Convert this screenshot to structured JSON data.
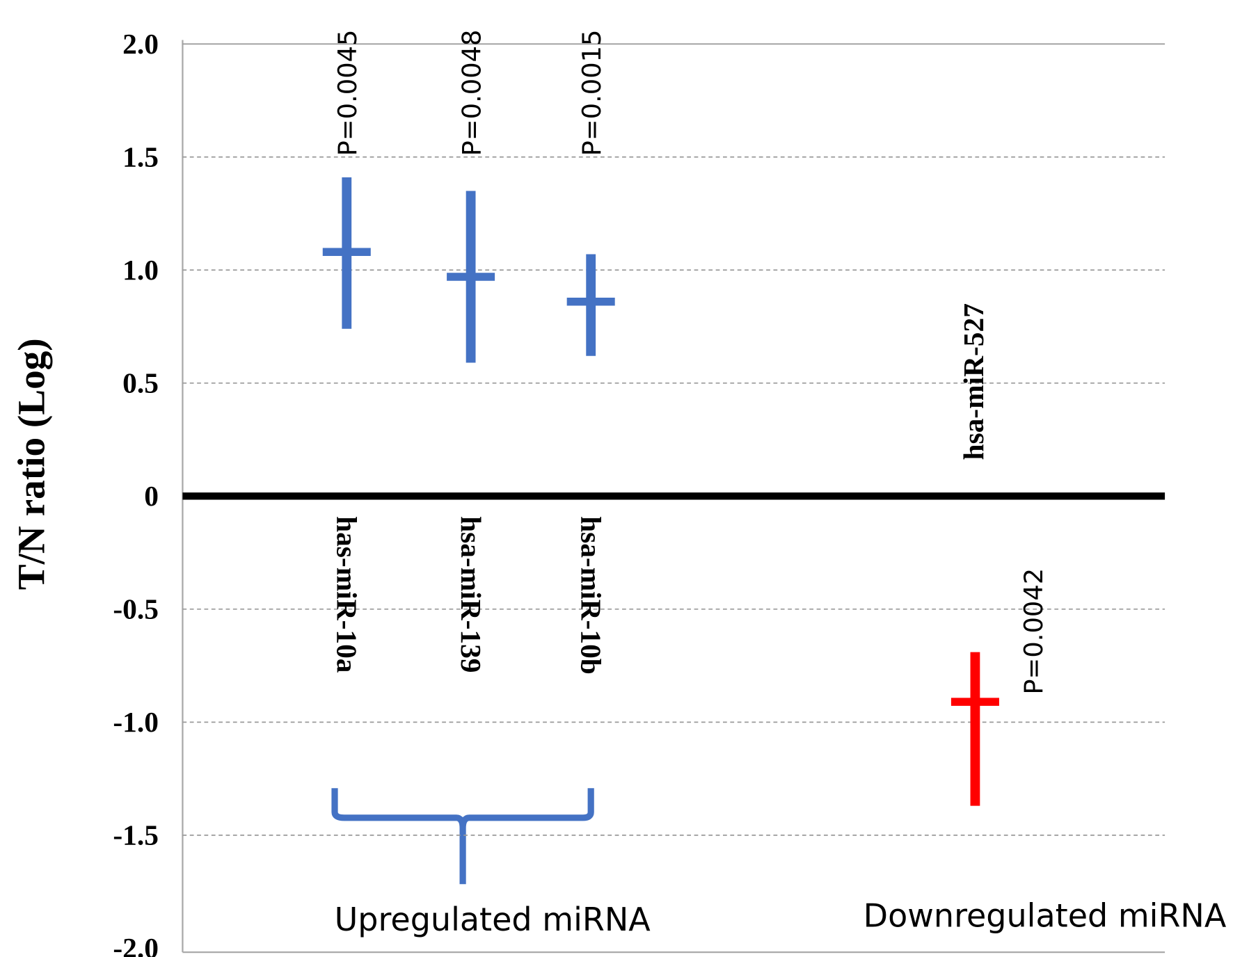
{
  "chart_data": {
    "type": "errorbar",
    "y_label": "T/N ratio (Log)",
    "categories": [
      "has-miR-10a",
      "hsa-miR-139",
      "hsa-miR-10b",
      "hsa-miR-527"
    ],
    "values": [
      1.08,
      0.97,
      0.86,
      -0.91
    ],
    "low": [
      0.74,
      0.59,
      0.62,
      -1.37
    ],
    "high": [
      1.41,
      1.35,
      1.07,
      -0.69
    ],
    "p_labels": [
      "P=0.0045",
      "P=0.0048",
      "P=0.0015",
      "P=0.0042"
    ],
    "colors": [
      "#4472c4",
      "#4472c4",
      "#4472c4",
      "#ff0000"
    ],
    "groups": [
      "Upregulated miRNA",
      "Downregulated miRNA"
    ],
    "ylim": [
      -2,
      2
    ],
    "yticks": [
      {
        "value": -2,
        "label": "-2.0"
      },
      {
        "value": -1.5,
        "label": "-1.5"
      },
      {
        "value": -1,
        "label": "-1.0"
      },
      -0.5,
      0,
      0.5,
      {
        "value": 1,
        "label": "1.0"
      },
      1.5,
      {
        "value": 2,
        "label": "2.0"
      }
    ],
    "grid": true
  }
}
